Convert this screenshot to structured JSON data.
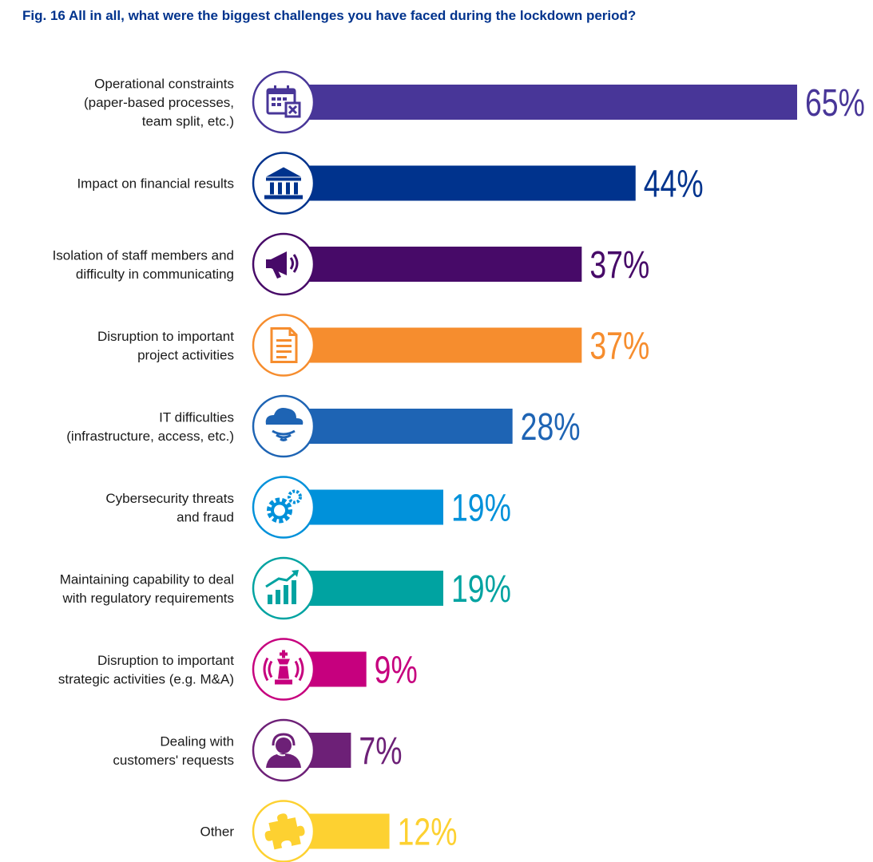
{
  "title": "Fig. 16 All in all, what were the biggest challenges you have faced during the lockdown period?",
  "chart_data": {
    "type": "bar",
    "orientation": "horizontal",
    "title": "Fig. 16 All in all, what were the biggest challenges you have faced during the lockdown period?",
    "xlabel": "",
    "ylabel": "",
    "xlim": [
      0,
      65
    ],
    "grid": false,
    "legend": "none",
    "categories": [
      [
        "Operational constraints",
        "(paper-based processes,",
        "team split, etc.)"
      ],
      [
        "Impact on financial results"
      ],
      [
        "Isolation of staff members and",
        "difficulty in communicating"
      ],
      [
        "Disruption to important",
        "project activities"
      ],
      [
        "IT difficulties",
        "(infrastructure, access, etc.)"
      ],
      [
        "Cybersecurity threats",
        "and fraud"
      ],
      [
        "Maintaining capability to deal",
        "with regulatory requirements"
      ],
      [
        "Disruption to important",
        "strategic activities (e.g. M&A)"
      ],
      [
        "Dealing with",
        "customers' requests"
      ],
      [
        "Other"
      ]
    ],
    "values": [
      65,
      44,
      37,
      37,
      28,
      19,
      19,
      9,
      7,
      12
    ],
    "value_labels": [
      "65%",
      "44%",
      "37%",
      "37%",
      "28%",
      "19%",
      "19%",
      "9%",
      "7%",
      "12%"
    ],
    "colors": [
      "#483698",
      "#00338d",
      "#470a68",
      "#f68d2e",
      "#1e64b4",
      "#0091da",
      "#00a3a1",
      "#c6007e",
      "#6d2077",
      "#fdd131"
    ],
    "icons": [
      "calendar-icon",
      "bank-icon",
      "megaphone-icon",
      "document-icon",
      "cloud-wifi-icon",
      "gears-icon",
      "growth-chart-icon",
      "chess-king-icon",
      "headset-person-icon",
      "puzzle-icon"
    ]
  }
}
